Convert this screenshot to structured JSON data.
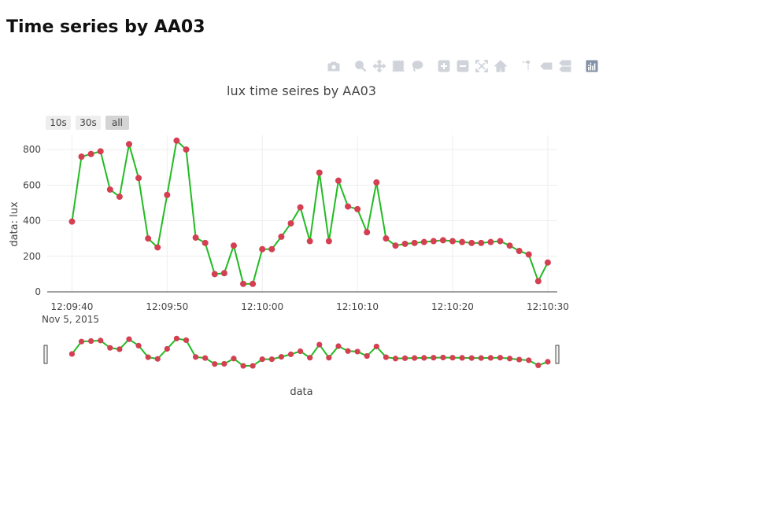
{
  "page": {
    "title": "Time series by AA03"
  },
  "modebar": {
    "icons": [
      "camera-icon",
      "zoom-icon",
      "pan-icon",
      "box-select-icon",
      "lasso-icon",
      "zoom-in-icon",
      "zoom-out-icon",
      "autoscale-icon",
      "reset-axes-icon",
      "spike-lines-icon",
      "hover-closest-icon",
      "hover-compare-icon",
      "plotly-logo-icon"
    ],
    "color": "#d0d4da",
    "logo_color": "#8391a6"
  },
  "range_selector": {
    "buttons": [
      "10s",
      "30s",
      "all"
    ],
    "active": "all"
  },
  "chart_data": {
    "type": "line",
    "title": "lux time seires by AA03",
    "xlabel": "data",
    "ylabel": "data: lux",
    "x_start": "2015-11-05 12:09:40",
    "x_tick_labels": [
      "12:09:40",
      "12:09:50",
      "12:10:00",
      "12:10:10",
      "12:10:20",
      "12:10:30"
    ],
    "x_date_label": "Nov 5, 2015",
    "y_ticks": [
      0,
      200,
      400,
      600,
      800
    ],
    "ylim": [
      0,
      880
    ],
    "xlim_seconds": [
      -2.6,
      51
    ],
    "grid": true,
    "mode": "lines+markers",
    "line_color": "#22bb22",
    "marker_color": "#d43f52",
    "rangeslider": true,
    "series": [
      {
        "x_seconds": [
          0,
          1,
          2,
          3,
          4,
          5,
          6,
          7,
          8,
          9,
          10,
          11,
          12,
          13,
          14,
          15,
          16,
          17,
          18,
          19,
          20,
          21,
          22,
          23,
          24,
          25,
          26,
          27,
          28,
          29,
          30,
          31,
          32,
          33,
          34,
          35,
          36,
          37,
          38,
          39,
          40,
          41,
          42,
          43,
          44,
          45,
          46,
          47,
          48,
          49,
          50
        ],
        "values": [
          395,
          760,
          775,
          790,
          575,
          535,
          830,
          640,
          300,
          250,
          545,
          850,
          800,
          305,
          275,
          100,
          105,
          260,
          45,
          45,
          240,
          240,
          310,
          385,
          475,
          285,
          670,
          285,
          625,
          480,
          465,
          335,
          615,
          300,
          260,
          270,
          275,
          280,
          285,
          290,
          285,
          280,
          275,
          275,
          280,
          285,
          260,
          230,
          210,
          60,
          165
        ]
      }
    ]
  }
}
